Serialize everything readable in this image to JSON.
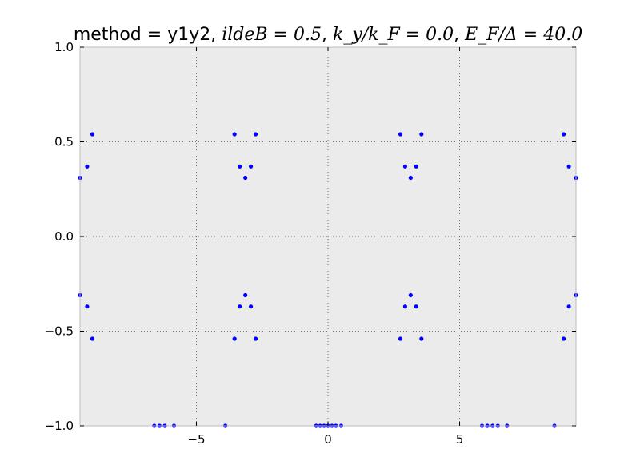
{
  "chart_data": {
    "type": "scatter",
    "title": {
      "prefix": "method = y1y2, ",
      "math1": "ildeB = 0.5",
      "sep1": ", ",
      "math2": "k_y/k_F = 0.0",
      "sep2": ", ",
      "math3": "E_F/Δ = 40.0"
    },
    "xlim": [
      -9.42,
      9.42
    ],
    "ylim": [
      -1.0,
      1.0
    ],
    "xticks": [
      -5,
      0,
      5
    ],
    "xtick_labels": [
      "−5",
      "0",
      "5"
    ],
    "yticks": [
      1.0,
      0.5,
      0.0,
      -0.5,
      -1.0
    ],
    "ytick_labels": [
      "1.0",
      "0.5",
      "0.0",
      "−0.5",
      "−1.0"
    ],
    "grid": true,
    "background": "#ebebeb",
    "marker_color": "#0000ff",
    "series": [
      {
        "x": [
          -9.42,
          -9.15,
          -8.95,
          -9.42,
          -9.15,
          -8.95,
          -3.55,
          -3.35,
          -3.14,
          -2.93,
          -2.75,
          -3.55,
          -3.35,
          -3.14,
          -2.93,
          -2.75,
          2.75,
          2.93,
          3.14,
          3.35,
          3.55,
          2.75,
          2.93,
          3.14,
          3.35,
          3.55,
          8.95,
          9.15,
          9.42,
          8.95,
          9.15,
          9.42,
          -6.6,
          -6.4,
          -6.2,
          -5.85,
          -3.9,
          -0.45,
          -0.3,
          -0.15,
          0.0,
          0.15,
          0.3,
          0.5,
          5.85,
          6.05,
          6.25,
          6.45,
          6.8,
          8.6
        ],
        "y": [
          0.31,
          0.37,
          0.54,
          -0.31,
          -0.37,
          -0.54,
          0.54,
          0.37,
          0.31,
          0.37,
          0.54,
          -0.54,
          -0.37,
          -0.31,
          -0.37,
          -0.54,
          0.54,
          0.37,
          0.31,
          0.37,
          0.54,
          -0.54,
          -0.37,
          -0.31,
          -0.37,
          -0.54,
          0.54,
          0.37,
          0.31,
          -0.54,
          -0.37,
          -0.31,
          -1.0,
          -1.0,
          -1.0,
          -1.0,
          -1.0,
          -1.0,
          -1.0,
          -1.0,
          -1.0,
          -1.0,
          -1.0,
          -1.0,
          -1.0,
          -1.0,
          -1.0,
          -1.0,
          -1.0,
          -1.0
        ]
      }
    ]
  }
}
